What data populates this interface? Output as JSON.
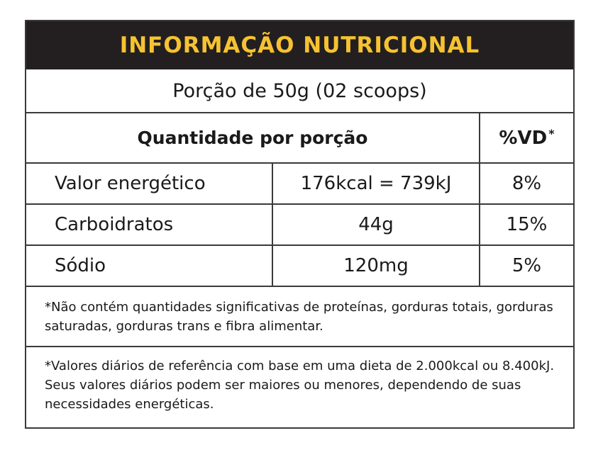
{
  "header": {
    "title": "INFORMAÇÃO NUTRICIONAL"
  },
  "serving": {
    "text": "Porção de 50g (02 scoops)"
  },
  "table": {
    "amount_header": "Quantidade por porção",
    "vd_header": "%VD",
    "vd_header_mark": "*",
    "rows": [
      {
        "name": "Valor energético",
        "amount": "176kcal = 739kJ",
        "vd": "8%"
      },
      {
        "name": "Carboidratos",
        "amount": "44g",
        "vd": "15%"
      },
      {
        "name": "Sódio",
        "amount": "120mg",
        "vd": "5%"
      }
    ]
  },
  "notes": {
    "not_significant": "*Não contém quantidades significativas de proteínas, gorduras totais, gorduras saturadas, gorduras trans e fibra alimentar.",
    "daily_values": "*Valores diários de referência com base em uma dieta de 2.000kcal ou 8.400kJ. Seus valores diários podem ser maiores ou menores, dependendo de suas necessidades energéticas."
  },
  "colors": {
    "header_background": "#231f20",
    "header_text": "#f6c231",
    "border": "#3a3a3a",
    "text": "#1a1a1a"
  }
}
